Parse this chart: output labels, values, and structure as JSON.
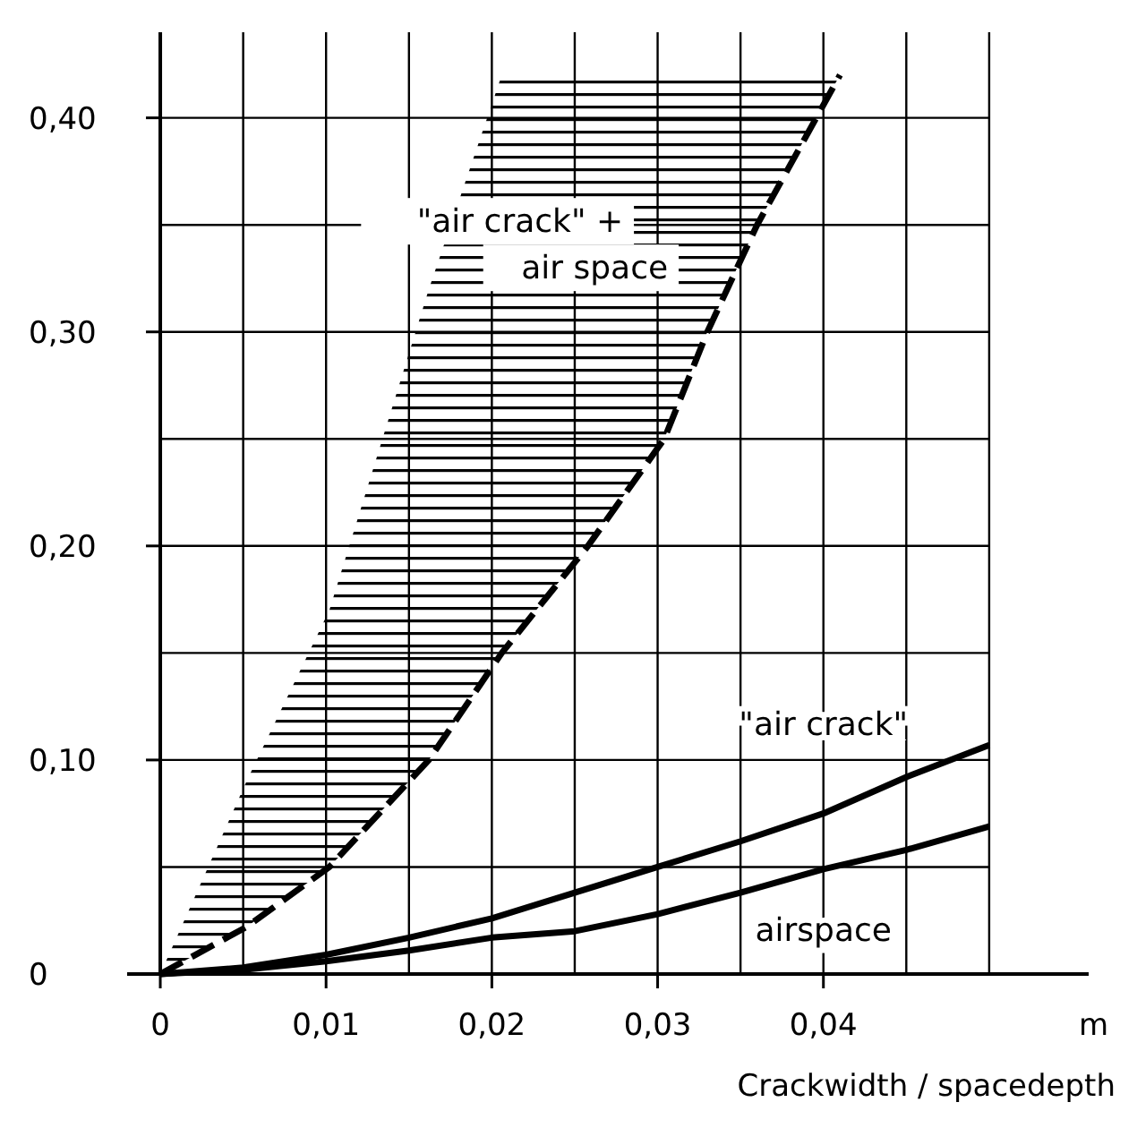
{
  "chart_data": {
    "type": "line",
    "xlabel": "Crackwidth / spacedepth",
    "xlim": [
      -0.002,
      0.056
    ],
    "ylim": [
      0,
      0.44
    ],
    "xticks": [
      {
        "value": 0,
        "label": "0"
      },
      {
        "value": 0.01,
        "label": "0,01"
      },
      {
        "value": 0.02,
        "label": "0,02"
      },
      {
        "value": 0.03,
        "label": "0,03"
      },
      {
        "value": 0.04,
        "label": "0,04"
      }
    ],
    "yticks": [
      {
        "value": 0,
        "label": "0"
      },
      {
        "value": 0.1,
        "label": "0,10"
      },
      {
        "value": 0.2,
        "label": "0,20"
      },
      {
        "value": 0.3,
        "label": "0,30"
      },
      {
        "value": 0.4,
        "label": "0,40"
      }
    ],
    "grid": true,
    "marker": "none",
    "annotations": [
      "m"
    ],
    "series": [
      {
        "name": "\"air crack\" + air space",
        "color": "#000000",
        "line_style": "dashed",
        "x": [
          0,
          0.0052,
          0.0102,
          0.0162,
          0.0206,
          0.0258,
          0.0304,
          0.033,
          0.036,
          0.041
        ],
        "values": [
          0,
          0.022,
          0.05,
          0.1,
          0.15,
          0.2,
          0.25,
          0.3,
          0.35,
          0.42
        ],
        "lower": [
          0,
          0.022,
          0.05,
          0.1,
          0.15,
          0.2,
          0.25,
          0.3,
          0.35,
          0.42
        ],
        "upper": [
          0,
          0.09,
          0.17,
          0.32,
          0.42,
          0.42,
          0.42,
          0.42,
          0.42,
          0.42
        ]
      },
      {
        "name": "\"air crack\"",
        "color": "#000000",
        "line_style": "solid",
        "x": [
          0,
          0.005,
          0.01,
          0.015,
          0.02,
          0.025,
          0.03,
          0.035,
          0.04,
          0.045,
          0.05
        ],
        "values": [
          0,
          0.003,
          0.009,
          0.017,
          0.026,
          0.038,
          0.05,
          0.062,
          0.075,
          0.092,
          0.107
        ]
      },
      {
        "name": "airspace",
        "color": "#000000",
        "line_style": "solid",
        "x": [
          0,
          0.005,
          0.01,
          0.015,
          0.02,
          0.025,
          0.03,
          0.035,
          0.04,
          0.045,
          0.05
        ],
        "values": [
          0,
          0.002,
          0.006,
          0.011,
          0.017,
          0.02,
          0.028,
          0.038,
          0.049,
          0.058,
          0.069
        ]
      }
    ]
  }
}
